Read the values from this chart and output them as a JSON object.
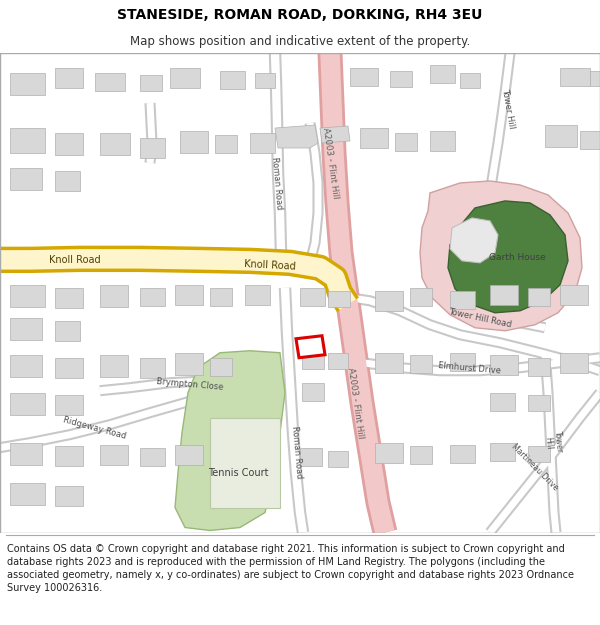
{
  "title": "STANESIDE, ROMAN ROAD, DORKING, RH4 3EU",
  "subtitle": "Map shows position and indicative extent of the property.",
  "footer": "Contains OS data © Crown copyright and database right 2021. This information is subject to Crown copyright and database rights 2023 and is reproduced with the permission of HM Land Registry. The polygons (including the associated geometry, namely x, y co-ordinates) are subject to Crown copyright and database rights 2023 Ordnance Survey 100026316.",
  "map_bg": "#f5f3f0",
  "road_color": "#ffffff",
  "road_outline": "#c8c8c8",
  "a_road_color": "#f2c8c8",
  "a_road_outline": "#e0a0a0",
  "knoll_road_color": "#fef5cc",
  "knoll_road_outline": "#d4a800",
  "building_color": "#d8d8d8",
  "building_outline": "#b0b0b0",
  "green_area_color": "#c8ddb0",
  "green_area_outline": "#98b878",
  "dark_green_color": "#4e8040",
  "dark_green_outline": "#3a6030",
  "pink_area_color": "#f0d0d0",
  "pink_area_outline": "#d0a0a0",
  "plot_fill": "#ffffff",
  "plot_outline": "#dd0000",
  "text_color": "#505050",
  "title_fontsize": 10,
  "subtitle_fontsize": 8.5,
  "footer_fontsize": 7
}
